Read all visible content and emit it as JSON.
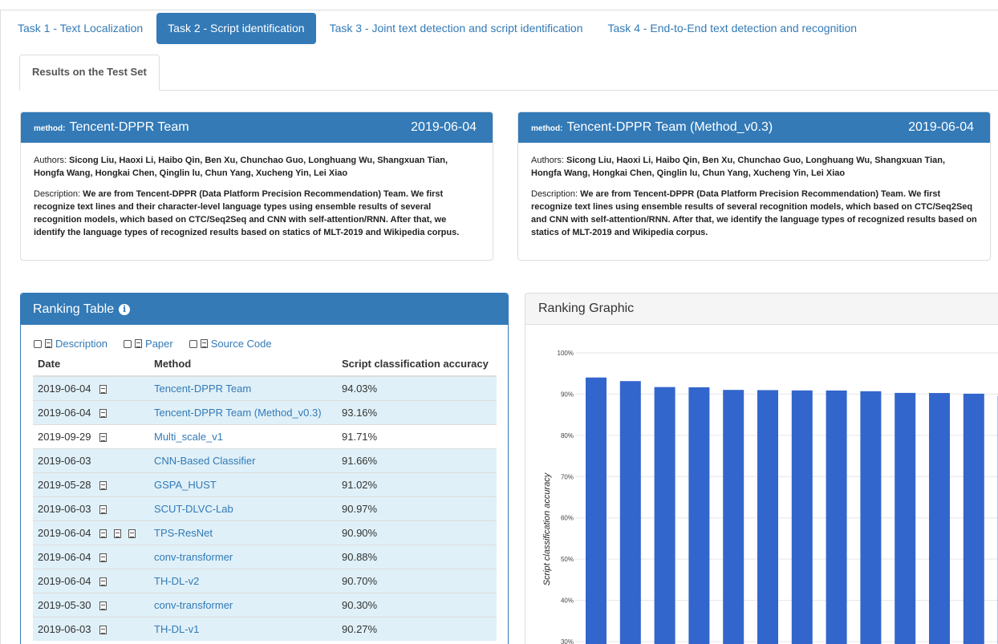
{
  "tasks": [
    {
      "label": "Task 1 - Text Localization",
      "active": false
    },
    {
      "label": "Task 2 - Script identification",
      "active": true
    },
    {
      "label": "Task 3 - Joint text detection and script identification",
      "active": false
    },
    {
      "label": "Task 4 - End-to-End text detection and recognition",
      "active": false
    }
  ],
  "sub_tab": "Results on the Test Set",
  "methods": [
    {
      "label": "method:",
      "name": "Tencent-DPPR Team",
      "date": "2019-06-04",
      "authors_label": "Authors:",
      "authors": "Sicong Liu, Haoxi Li, Haibo Qin, Ben Xu, Chunchao Guo, Longhuang Wu, Shangxuan Tian, Hongfa Wang, Hongkai Chen, Qinglin lu, Chun Yang, Xucheng Yin, Lei Xiao",
      "description_label": "Description:",
      "description": "We are from Tencent-DPPR (Data Platform Precision Recommendation) Team. We first recognize text lines and their character-level language types using ensemble results of several recognition models, which based on CTC/Seq2Seq and CNN with self-attention/RNN. After that, we identify the language types of recognized results based on statics of MLT-2019 and Wikipedia corpus."
    },
    {
      "label": "method:",
      "name": "Tencent-DPPR Team (Method_v0.3)",
      "date": "2019-06-04",
      "authors_label": "Authors:",
      "authors": "Sicong Liu, Haoxi Li, Haibo Qin, Ben Xu, Chunchao Guo, Longhuang Wu, Shangxuan Tian, Hongfa Wang, Hongkai Chen, Qinglin lu, Chun Yang, Xucheng Yin, Lei Xiao",
      "description_label": "Description:",
      "description": "We are from Tencent-DPPR (Data Platform Precision Recommendation) Team. We first recognize text lines using ensemble results of several recognition models, which based on CTC/Seq2Seq and CNN with self-attention/RNN. After that, we identify the language types of recognized results based on statics of MLT-2019 and Wikipedia corpus."
    }
  ],
  "ranking": {
    "title": "Ranking Table",
    "toggles": [
      "Description",
      "Paper",
      "Source Code"
    ],
    "columns": [
      "Date",
      "Method",
      "Script classification accuracy"
    ],
    "rows": [
      {
        "date": "2019-06-04",
        "method": "Tencent-DPPR Team",
        "acc": "94.03%",
        "desc": true,
        "paper": false,
        "code": false,
        "hl": true
      },
      {
        "date": "2019-06-04",
        "method": "Tencent-DPPR Team (Method_v0.3)",
        "acc": "93.16%",
        "desc": true,
        "paper": false,
        "code": false,
        "hl": true
      },
      {
        "date": "2019-09-29",
        "method": "Multi_scale_v1",
        "acc": "91.71%",
        "desc": true,
        "paper": false,
        "code": false,
        "hl": false
      },
      {
        "date": "2019-06-03",
        "method": "CNN-Based Classifier",
        "acc": "91.66%",
        "desc": false,
        "paper": false,
        "code": false,
        "hl": true
      },
      {
        "date": "2019-05-28",
        "method": "GSPA_HUST",
        "acc": "91.02%",
        "desc": true,
        "paper": false,
        "code": false,
        "hl": true
      },
      {
        "date": "2019-06-03",
        "method": "SCUT-DLVC-Lab",
        "acc": "90.97%",
        "desc": true,
        "paper": false,
        "code": false,
        "hl": true
      },
      {
        "date": "2019-06-04",
        "method": "TPS-ResNet",
        "acc": "90.90%",
        "desc": true,
        "paper": true,
        "code": true,
        "hl": true
      },
      {
        "date": "2019-06-04",
        "method": "conv-transformer",
        "acc": "90.88%",
        "desc": true,
        "paper": false,
        "code": false,
        "hl": true
      },
      {
        "date": "2019-06-04",
        "method": "TH-DL-v2",
        "acc": "90.70%",
        "desc": true,
        "paper": false,
        "code": false,
        "hl": true
      },
      {
        "date": "2019-05-30",
        "method": "conv-transformer",
        "acc": "90.30%",
        "desc": true,
        "paper": false,
        "code": false,
        "hl": true
      },
      {
        "date": "2019-06-03",
        "method": "TH-DL-v1",
        "acc": "90.27%",
        "desc": true,
        "paper": false,
        "code": false,
        "hl": true
      }
    ]
  },
  "graphic": {
    "title": "Ranking Graphic",
    "bar_color": "#3366cc"
  },
  "chart_data": {
    "type": "bar",
    "ylabel": "Script classification accuracy",
    "yticks": [
      "30%",
      "40%",
      "50%",
      "60%",
      "70%",
      "80%",
      "90%",
      "100%"
    ],
    "ylim": [
      30,
      100
    ],
    "values": [
      94.03,
      93.16,
      91.71,
      91.66,
      91.02,
      90.97,
      90.9,
      90.88,
      90.7,
      90.3,
      90.27,
      90.1,
      89.5
    ]
  }
}
